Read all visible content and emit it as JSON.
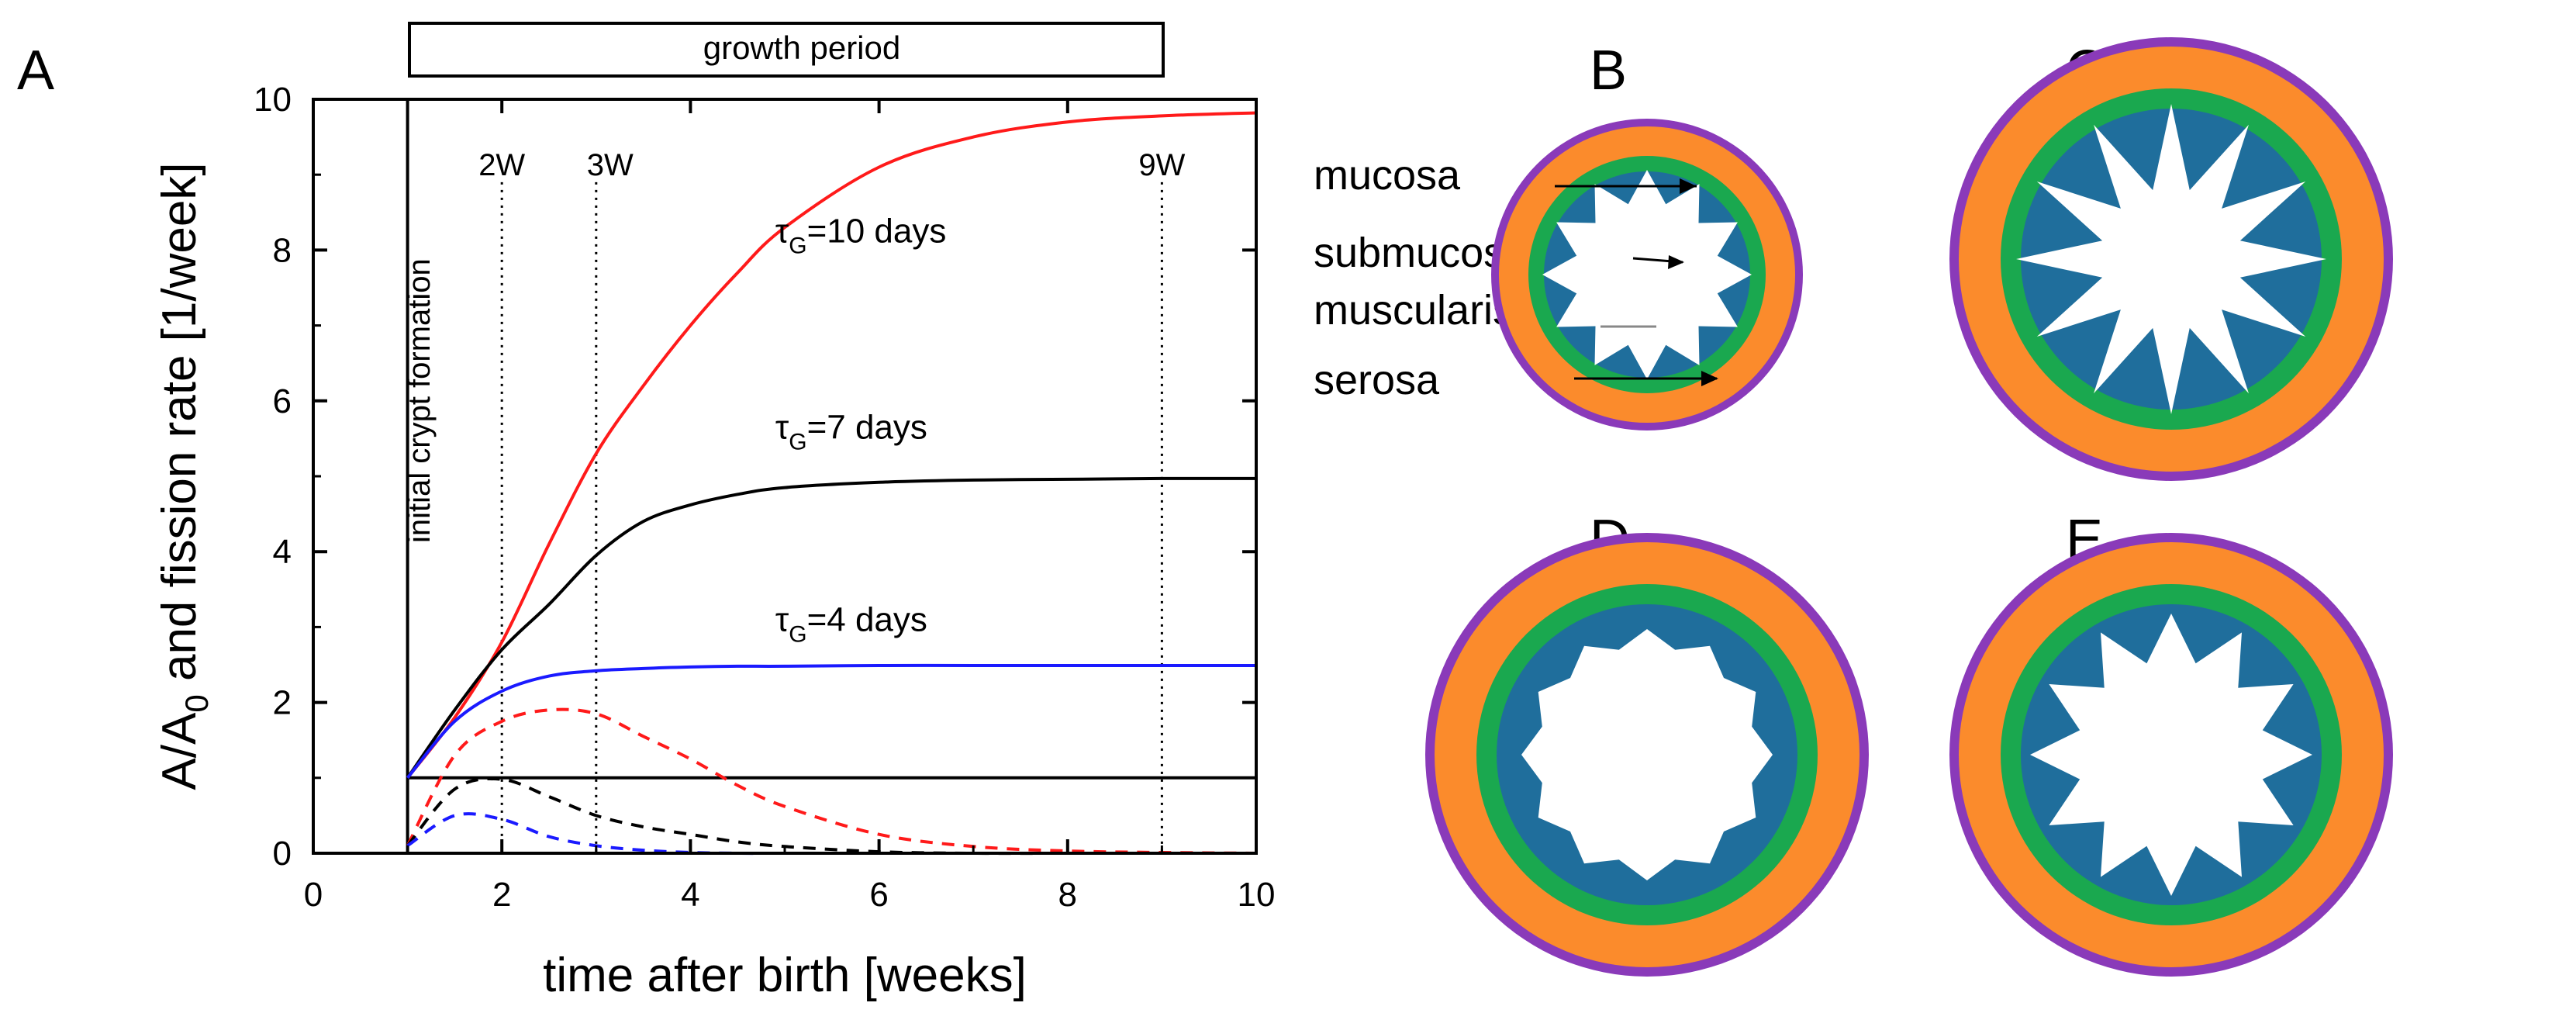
{
  "panel_labels": {
    "a": "A",
    "b": "B",
    "c": "C",
    "d": "D",
    "e": "E"
  },
  "colors": {
    "red": "#ff1a1a",
    "black": "#000000",
    "blue": "#1a1aff",
    "mucosa": "#1f6e9c",
    "submucosa": "#1aa84f",
    "muscularis": "#fb8b2c",
    "serosa": "#8a3ab9"
  },
  "chart_data": {
    "type": "line",
    "title": "",
    "xlabel": "time after birth [weeks]",
    "ylabel": {
      "main": "A/A",
      "sub": "0",
      "rest": " and fission rate [1/week]"
    },
    "xlim": [
      0,
      10
    ],
    "ylim": [
      0,
      10
    ],
    "xticks": [
      0,
      2,
      4,
      6,
      8,
      10
    ],
    "yticks": [
      0,
      2,
      4,
      6,
      8,
      10
    ],
    "growth_period": {
      "label": "growth period",
      "start": 1,
      "end": 9
    },
    "initial_label": "initial crypt formation",
    "initial_x": 1,
    "baseline_y": 1,
    "vlines": [
      {
        "x": 2,
        "label": "2W"
      },
      {
        "x": 3,
        "label": "3W"
      },
      {
        "x": 9,
        "label": "9W"
      }
    ],
    "x": [
      1,
      1.5,
      2,
      2.5,
      3,
      3.5,
      4,
      4.5,
      5,
      6,
      7,
      8,
      9,
      10
    ],
    "series": [
      {
        "name": "tau_G=10 days",
        "kind": "area",
        "color": "#ff1a1a",
        "values": [
          1.0,
          1.8,
          2.8,
          4.1,
          5.3,
          6.2,
          7.0,
          7.7,
          8.3,
          9.1,
          9.5,
          9.7,
          9.78,
          9.82
        ]
      },
      {
        "name": "tau_G=7 days",
        "kind": "area",
        "color": "#000000",
        "values": [
          1.0,
          1.9,
          2.7,
          3.3,
          3.95,
          4.4,
          4.62,
          4.76,
          4.85,
          4.92,
          4.95,
          4.96,
          4.97,
          4.97
        ]
      },
      {
        "name": "tau_G=4 days",
        "kind": "area",
        "color": "#1a1aff",
        "values": [
          1.0,
          1.75,
          2.15,
          2.35,
          2.42,
          2.45,
          2.47,
          2.48,
          2.48,
          2.49,
          2.49,
          2.49,
          2.49,
          2.49
        ]
      },
      {
        "name": "fission rate tau_G=10 days",
        "kind": "fission",
        "color": "#ff1a1a",
        "values": [
          0.1,
          1.3,
          1.75,
          1.9,
          1.85,
          1.55,
          1.25,
          0.9,
          0.62,
          0.25,
          0.09,
          0.03,
          0.01,
          0.0
        ]
      },
      {
        "name": "fission rate tau_G=7 days",
        "kind": "fission",
        "color": "#000000",
        "values": [
          0.1,
          0.85,
          0.98,
          0.75,
          0.5,
          0.35,
          0.25,
          0.15,
          0.09,
          0.02,
          0.0,
          0.0,
          0.0,
          0.0
        ]
      },
      {
        "name": "fission rate tau_G=4 days",
        "kind": "fission",
        "color": "#1a1aff",
        "values": [
          0.1,
          0.5,
          0.45,
          0.22,
          0.1,
          0.04,
          0.01,
          0.0,
          0.0,
          0.0,
          0.0,
          0.0,
          0.0,
          0.0
        ]
      }
    ],
    "annotations": [
      {
        "main": "τ",
        "sub": "G",
        "rest": "=10 days",
        "x": 4.9,
        "y": 8.1
      },
      {
        "main": "τ",
        "sub": "G",
        "rest": "=7 days",
        "x": 4.9,
        "y": 5.5
      },
      {
        "main": "τ",
        "sub": "G",
        "rest": "=4 days",
        "x": 4.9,
        "y": 2.95
      }
    ]
  },
  "legend": [
    {
      "label": "mucosa",
      "color": "#1f6e9c"
    },
    {
      "label": "submucosa",
      "color": "#1aa84f"
    },
    {
      "label": "muscularis",
      "color": "#fb8b2c"
    },
    {
      "label": "serosa",
      "color": "#8a3ab9"
    }
  ]
}
